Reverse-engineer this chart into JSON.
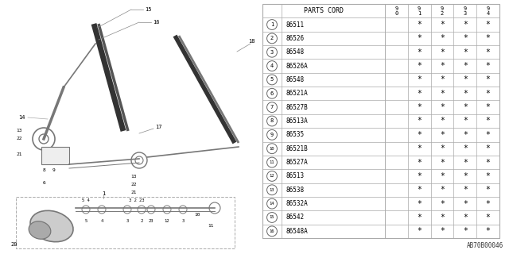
{
  "diagram_code": "AB70B00046",
  "rows": [
    {
      "num": "1",
      "code": "86511"
    },
    {
      "num": "2",
      "code": "86526"
    },
    {
      "num": "3",
      "code": "86548"
    },
    {
      "num": "4",
      "code": "86526A"
    },
    {
      "num": "5",
      "code": "86548"
    },
    {
      "num": "6",
      "code": "86521A"
    },
    {
      "num": "7",
      "code": "86527B"
    },
    {
      "num": "8",
      "code": "86513A"
    },
    {
      "num": "9",
      "code": "86535"
    },
    {
      "num": "10",
      "code": "86521B"
    },
    {
      "num": "11",
      "code": "86527A"
    },
    {
      "num": "12",
      "code": "86513"
    },
    {
      "num": "13",
      "code": "86538"
    },
    {
      "num": "14",
      "code": "86532A"
    },
    {
      "num": "15",
      "code": "86542"
    },
    {
      "num": "16",
      "code": "86548A"
    }
  ],
  "bg_color": "#ffffff",
  "line_color": "#aaaaaa",
  "text_color": "#000000",
  "diagram_color": "#777777"
}
